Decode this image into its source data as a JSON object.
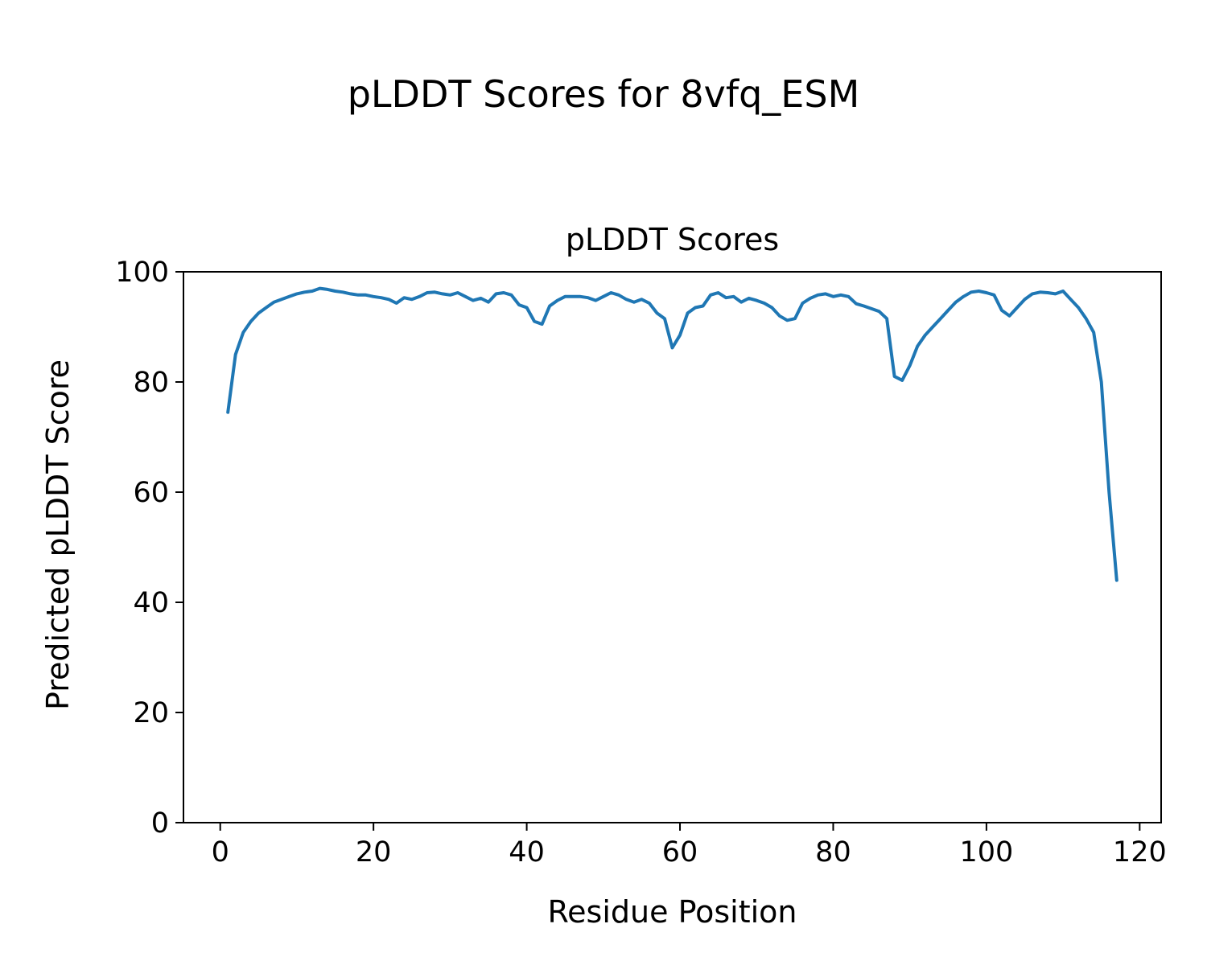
{
  "figure": {
    "background": "#ffffff",
    "text_color": "#000000"
  },
  "chart_data": {
    "type": "line",
    "suptitle": "pLDDT Scores for 8vfq_ESM",
    "title": "pLDDT Scores",
    "xlabel": "Residue Position",
    "ylabel": "Predicted pLDDT Score",
    "xlim": [
      -4.8,
      122.8
    ],
    "ylim": [
      0,
      100
    ],
    "xticks": [
      0,
      20,
      40,
      60,
      80,
      100,
      120
    ],
    "yticks": [
      0,
      20,
      40,
      60,
      80,
      100
    ],
    "grid": false,
    "legend": "none",
    "series": [
      {
        "name": "pLDDT",
        "color": "#1f77b4",
        "line_width": 4,
        "x": [
          1,
          2,
          3,
          4,
          5,
          6,
          7,
          8,
          9,
          10,
          11,
          12,
          13,
          14,
          15,
          16,
          17,
          18,
          19,
          20,
          21,
          22,
          23,
          24,
          25,
          26,
          27,
          28,
          29,
          30,
          31,
          32,
          33,
          34,
          35,
          36,
          37,
          38,
          39,
          40,
          41,
          42,
          43,
          44,
          45,
          46,
          47,
          48,
          49,
          50,
          51,
          52,
          53,
          54,
          55,
          56,
          57,
          58,
          59,
          60,
          61,
          62,
          63,
          64,
          65,
          66,
          67,
          68,
          69,
          70,
          71,
          72,
          73,
          74,
          75,
          76,
          77,
          78,
          79,
          80,
          81,
          82,
          83,
          84,
          85,
          86,
          87,
          88,
          89,
          90,
          91,
          92,
          93,
          94,
          95,
          96,
          97,
          98,
          99,
          100,
          101,
          102,
          103,
          104,
          105,
          106,
          107,
          108,
          109,
          110,
          111,
          112,
          113,
          114,
          115,
          116,
          117
        ],
        "y": [
          74.5,
          85.0,
          89.0,
          91.0,
          92.5,
          93.5,
          94.5,
          95.0,
          95.5,
          96.0,
          96.3,
          96.5,
          97.0,
          96.8,
          96.5,
          96.3,
          96.0,
          95.8,
          95.8,
          95.5,
          95.3,
          95.0,
          94.3,
          95.3,
          95.0,
          95.5,
          96.2,
          96.3,
          96.0,
          95.8,
          96.2,
          95.5,
          94.8,
          95.2,
          94.5,
          96.0,
          96.2,
          95.8,
          94.0,
          93.5,
          91.0,
          90.5,
          93.8,
          94.8,
          95.5,
          95.5,
          95.5,
          95.3,
          94.8,
          95.5,
          96.2,
          95.8,
          95.0,
          94.5,
          95.0,
          94.3,
          92.5,
          91.5,
          86.2,
          88.5,
          92.5,
          93.5,
          93.8,
          95.8,
          96.2,
          95.3,
          95.5,
          94.5,
          95.2,
          94.8,
          94.3,
          93.5,
          92.0,
          91.2,
          91.5,
          94.3,
          95.2,
          95.8,
          96.0,
          95.5,
          95.8,
          95.5,
          94.2,
          93.8,
          93.3,
          92.8,
          91.5,
          81.0,
          80.3,
          83.0,
          86.5,
          88.5,
          90.0,
          91.5,
          93.0,
          94.5,
          95.5,
          96.3,
          96.5,
          96.2,
          95.8,
          93.0,
          92.0,
          93.5,
          95.0,
          96.0,
          96.3,
          96.2,
          96.0,
          96.5,
          95.0,
          93.5,
          91.5,
          89.0,
          80.0,
          60.0,
          44.0
        ]
      }
    ]
  }
}
